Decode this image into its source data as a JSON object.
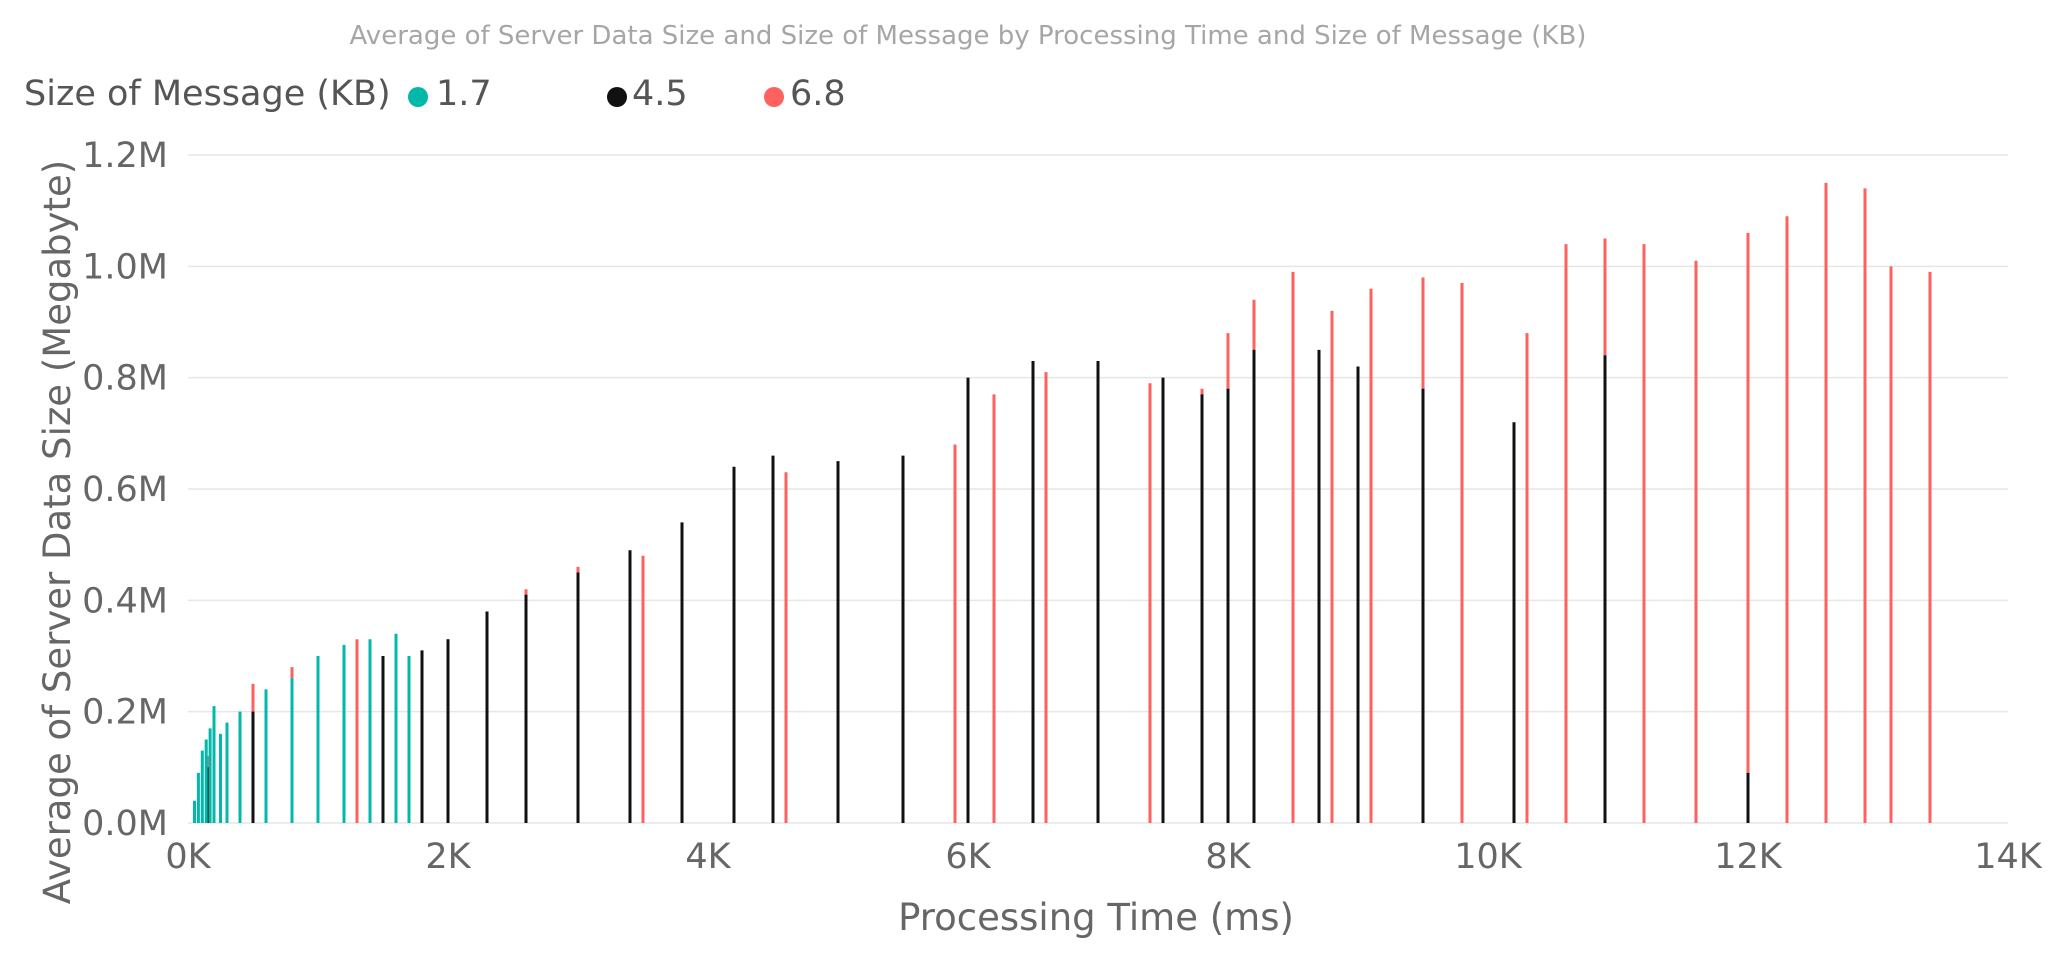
{
  "chart_data": {
    "type": "bar",
    "title": "Average of Server Data Size and Size of Message by Processing Time and Size of Message (KB)",
    "xlabel": "Processing Time (ms)",
    "ylabel": "Average of Server Data Size (Megabyte)",
    "xlim": [
      0,
      14000
    ],
    "ylim": [
      0,
      1200000
    ],
    "x_ticks": [
      "0K",
      "2K",
      "4K",
      "6K",
      "8K",
      "10K",
      "12K",
      "14K"
    ],
    "y_ticks": [
      "0.0M",
      "0.2M",
      "0.4M",
      "0.6M",
      "0.8M",
      "1.0M",
      "1.2M"
    ],
    "grid": true,
    "legend": {
      "title": "Size of Message (KB)",
      "position": "top-left"
    },
    "series": [
      {
        "name": "1.7",
        "color": "#01b8aa",
        "points": [
          [
            50,
            40000
          ],
          [
            80,
            90000
          ],
          [
            110,
            130000
          ],
          [
            140,
            150000
          ],
          [
            170,
            170000
          ],
          [
            200,
            210000
          ],
          [
            250,
            160000
          ],
          [
            300,
            180000
          ],
          [
            400,
            200000
          ],
          [
            600,
            240000
          ],
          [
            800,
            260000
          ],
          [
            1000,
            300000
          ],
          [
            1200,
            320000
          ],
          [
            1400,
            330000
          ],
          [
            1600,
            340000
          ],
          [
            1700,
            300000
          ]
        ]
      },
      {
        "name": "4.5",
        "color": "#111111",
        "points": [
          [
            150,
            100000
          ],
          [
            300,
            150000
          ],
          [
            500,
            200000
          ],
          [
            800,
            250000
          ],
          [
            1000,
            260000
          ],
          [
            1500,
            300000
          ],
          [
            1800,
            310000
          ],
          [
            2000,
            330000
          ],
          [
            2300,
            380000
          ],
          [
            2600,
            410000
          ],
          [
            3000,
            450000
          ],
          [
            3400,
            490000
          ],
          [
            3800,
            540000
          ],
          [
            4200,
            640000
          ],
          [
            4500,
            660000
          ],
          [
            5000,
            650000
          ],
          [
            5500,
            660000
          ],
          [
            6000,
            800000
          ],
          [
            6500,
            830000
          ],
          [
            7000,
            830000
          ],
          [
            7500,
            800000
          ],
          [
            7800,
            770000
          ],
          [
            8000,
            780000
          ],
          [
            8200,
            850000
          ],
          [
            8700,
            850000
          ],
          [
            9000,
            820000
          ],
          [
            9500,
            780000
          ],
          [
            10200,
            720000
          ],
          [
            10900,
            840000
          ],
          [
            12000,
            90000
          ]
        ]
      },
      {
        "name": "6.8",
        "color": "#fd625e",
        "points": [
          [
            150,
            120000
          ],
          [
            300,
            180000
          ],
          [
            500,
            250000
          ],
          [
            800,
            280000
          ],
          [
            1000,
            300000
          ],
          [
            1300,
            330000
          ],
          [
            1600,
            320000
          ],
          [
            2000,
            330000
          ],
          [
            2300,
            380000
          ],
          [
            2600,
            420000
          ],
          [
            3000,
            460000
          ],
          [
            3500,
            480000
          ],
          [
            3800,
            530000
          ],
          [
            4200,
            600000
          ],
          [
            4600,
            630000
          ],
          [
            5000,
            640000
          ],
          [
            5500,
            650000
          ],
          [
            5900,
            680000
          ],
          [
            6200,
            770000
          ],
          [
            6600,
            810000
          ],
          [
            7000,
            820000
          ],
          [
            7400,
            790000
          ],
          [
            7800,
            780000
          ],
          [
            8000,
            880000
          ],
          [
            8200,
            940000
          ],
          [
            8500,
            990000
          ],
          [
            8800,
            920000
          ],
          [
            9100,
            960000
          ],
          [
            9500,
            980000
          ],
          [
            9800,
            970000
          ],
          [
            10300,
            880000
          ],
          [
            10600,
            1040000
          ],
          [
            10900,
            1050000
          ],
          [
            11200,
            1040000
          ],
          [
            11600,
            1010000
          ],
          [
            12000,
            1060000
          ],
          [
            12300,
            1090000
          ],
          [
            12600,
            1150000
          ],
          [
            12900,
            1140000
          ],
          [
            13100,
            1000000
          ],
          [
            13400,
            990000
          ]
        ]
      }
    ]
  }
}
